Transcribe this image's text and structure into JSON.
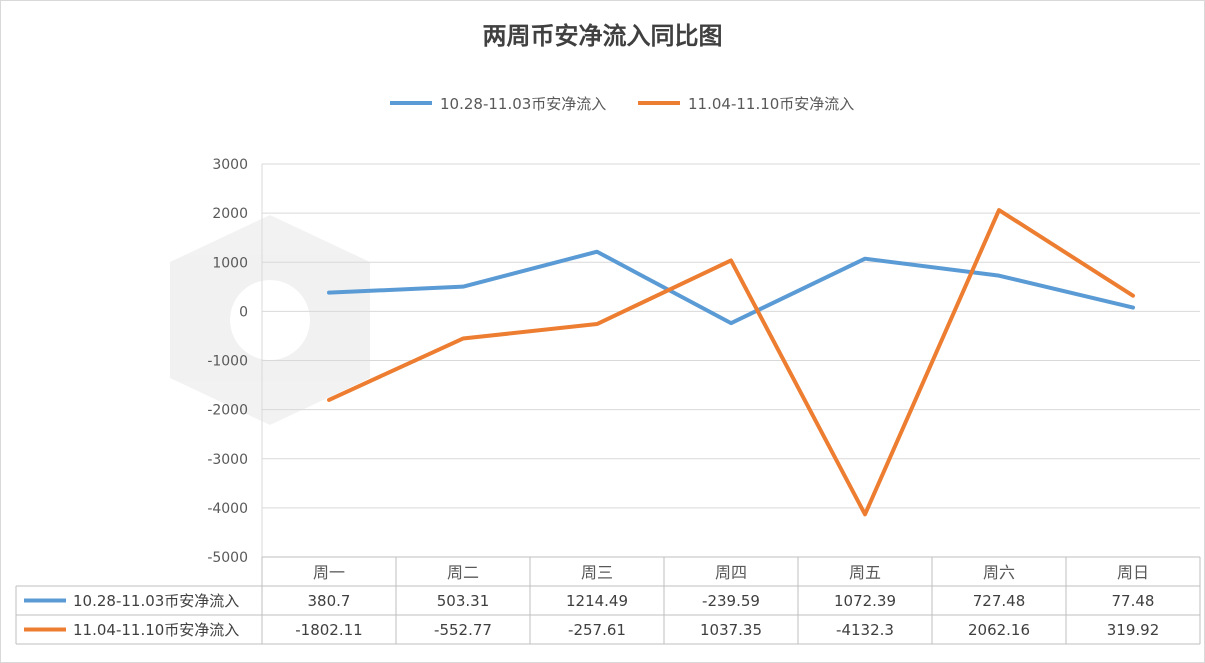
{
  "chart_data": {
    "type": "line",
    "title": "两周币安净流入同比图",
    "categories": [
      "周一",
      "周二",
      "周三",
      "周四",
      "周五",
      "周六",
      "周日"
    ],
    "series": [
      {
        "name": "10.28-11.03币安净流入",
        "color": "#5b9bd5",
        "values": [
          380.7,
          503.31,
          1214.49,
          -239.59,
          1072.39,
          727.48,
          77.48
        ]
      },
      {
        "name": "11.04-11.10币安净流入",
        "color": "#ed7d31",
        "values": [
          -1802.11,
          -552.77,
          -257.61,
          1037.35,
          -4132.3,
          2062.16,
          319.92
        ]
      }
    ],
    "value_labels": [
      [
        "380.7",
        "503.31",
        "1214.49",
        "-239.59",
        "1072.39",
        "727.48",
        "77.48"
      ],
      [
        "-1802.11",
        "-552.77",
        "-257.61",
        "1037.35",
        "-4132.3",
        "2062.16",
        "319.92"
      ]
    ],
    "ylim": [
      -5000,
      3000
    ],
    "yticks": [
      3000,
      2000,
      1000,
      0,
      -1000,
      -2000,
      -3000,
      -4000,
      -5000
    ],
    "grid": true,
    "legend": "top-center",
    "data_table": true
  }
}
